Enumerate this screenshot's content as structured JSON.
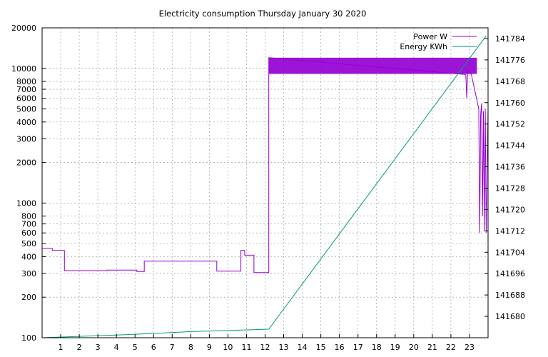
{
  "chart_data": {
    "type": "line",
    "title": "Electricity consumption Thursday January 30 2020",
    "xlabel": "",
    "ylabel": "",
    "y2label": "",
    "xlim": [
      0,
      24
    ],
    "ylim": [
      100,
      20000
    ],
    "y_scale": "log",
    "y2lim": [
      141672,
      141788
    ],
    "grid": true,
    "legend_position": "top-right",
    "x_ticks": [
      "1",
      "2",
      "3",
      "4",
      "5",
      "6",
      "7",
      "8",
      "9",
      "10",
      "11",
      "12",
      "13",
      "14",
      "15",
      "16",
      "17",
      "18",
      "19",
      "20",
      "21",
      "22",
      "23"
    ],
    "y_ticks": [
      "100",
      "200",
      "300",
      "400",
      "500",
      "600",
      "700",
      "800",
      "1000",
      "2000",
      "3000",
      "4000",
      "5000",
      "6000",
      "7000",
      "8000",
      "10000",
      "20000"
    ],
    "y2_ticks": [
      "141680",
      "141688",
      "141696",
      "141704",
      "141712",
      "141720",
      "141728",
      "141736",
      "141744",
      "141752",
      "141760",
      "141768",
      "141776",
      "141784"
    ],
    "series": [
      {
        "name": "Power W",
        "axis": "y",
        "color": "#9400d3",
        "x": [
          0,
          0.55,
          0.55,
          1.2,
          1.2,
          3.5,
          3.5,
          5.1,
          5.1,
          5.5,
          5.5,
          9.4,
          9.4,
          10.7,
          10.7,
          10.9,
          10.9,
          11.4,
          11.4,
          12.2,
          12.2,
          22.8,
          22.85,
          22.9,
          23.1,
          23.5,
          23.55,
          23.6,
          23.65,
          23.7,
          23.75,
          23.8,
          23.85,
          23.9,
          24
        ],
        "y": [
          460,
          460,
          445,
          445,
          315,
          315,
          318,
          318,
          310,
          310,
          370,
          370,
          312,
          312,
          445,
          445,
          410,
          410,
          305,
          305,
          12000,
          9000,
          6000,
          9500,
          9000,
          5000,
          600,
          4500,
          5500,
          800,
          4800,
          620,
          5000,
          600,
          5000
        ],
        "band": {
          "x_start": 12.2,
          "x_end": 23.4,
          "low": 9100,
          "high": 12000
        }
      },
      {
        "name": "Energy KWh",
        "axis": "y2",
        "color": "#009e73",
        "x": [
          0,
          2,
          4,
          6,
          8,
          10,
          12.2,
          23.9
        ],
        "y": [
          141672.0,
          141672.5,
          141673.0,
          141673.6,
          141674.3,
          141674.7,
          141675.2,
          141785.0
        ]
      }
    ]
  }
}
